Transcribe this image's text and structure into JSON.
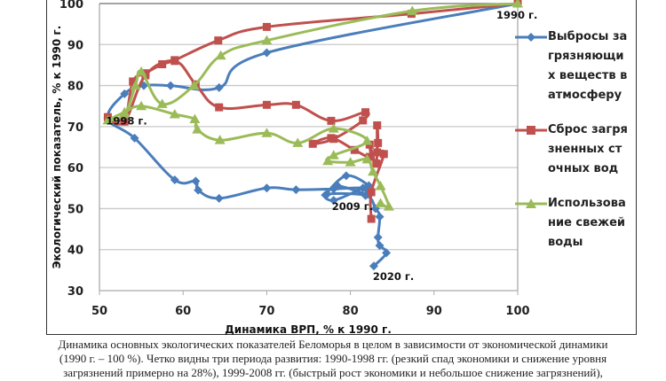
{
  "chart_data": {
    "type": "line",
    "title": "",
    "xlabel": "Динамика ВРП, % к 1990 г.",
    "ylabel": "Экологический показатель, % к 1990 г.",
    "xlim": [
      50,
      100
    ],
    "ylim": [
      30,
      100
    ],
    "xticks": [
      "50",
      "60",
      "70",
      "80",
      "90",
      "100"
    ],
    "yticks": [
      "30",
      "40",
      "50",
      "60",
      "70",
      "80",
      "90",
      "100"
    ],
    "grid": "horizontal",
    "legend_position": "right",
    "annotations": [
      {
        "text": "1990 г.",
        "x": 100,
        "y": 100
      },
      {
        "text": "1998 г.",
        "x": 51,
        "y": 72
      },
      {
        "text": "2009 г.",
        "x": 78,
        "y": 52
      },
      {
        "text": "2020 г.",
        "x": 83,
        "y": 36
      }
    ],
    "series": [
      {
        "name": "Выбросы загрязняющих веществ в атмосферу",
        "color": "#4a7ebb",
        "marker": "diamond",
        "x": [
          100,
          70,
          64.3,
          58.5,
          55.3,
          53,
          51,
          54.2,
          59,
          61.5,
          61.8,
          64.3,
          70,
          73.5,
          78,
          81.8,
          82,
          78.5,
          77,
          79.5,
          82.2,
          81.5,
          78,
          77.2,
          81.8,
          83,
          83.5,
          83.3,
          83.5,
          84.3,
          82.8
        ],
        "y": [
          100,
          88,
          79.5,
          80,
          80,
          78,
          72,
          67.2,
          57,
          56.7,
          54.5,
          52.5,
          55,
          54.6,
          54.8,
          55,
          53.5,
          55.5,
          53.3,
          58,
          55.6,
          55,
          52,
          53.5,
          53.2,
          50,
          48,
          43,
          41,
          39.2,
          36
        ]
      },
      {
        "name": "Сброс загрязненных сточных вод",
        "color": "#c0504d",
        "marker": "square",
        "x": [
          100,
          87.3,
          70,
          64.2,
          59,
          57.5,
          55.5,
          54,
          53,
          51,
          53,
          55.5,
          59,
          61.5,
          64.3,
          70,
          73.5,
          77.7,
          81.8,
          81.5,
          78,
          75.5,
          77.7,
          80.5,
          82.3,
          82.3,
          83.1,
          83.2,
          83.3,
          83.2,
          84,
          82.5,
          82.5
        ],
        "y": [
          100,
          97.5,
          94.3,
          91,
          86.2,
          85.2,
          83,
          81,
          72,
          72.3,
          71.2,
          82.5,
          86,
          80.3,
          74.7,
          75.3,
          75.3,
          71.4,
          73.5,
          71.5,
          67,
          65.8,
          67.2,
          64.3,
          62.6,
          65.6,
          61,
          70.3,
          66,
          63.7,
          63.3,
          54,
          47.5
        ]
      },
      {
        "name": "Использование свежей воды",
        "color": "#9bbb59",
        "marker": "triangle",
        "x": [
          100,
          87.4,
          70,
          64.5,
          61.3,
          57.5,
          55,
          54.3,
          53,
          51,
          53,
          55,
          59,
          61.4,
          61.7,
          64.4,
          70,
          73.7,
          78,
          82,
          78,
          77.3,
          80,
          82,
          82.7,
          83.6,
          84.6,
          83.6
        ],
        "y": [
          100,
          98.2,
          91,
          87.3,
          80,
          75.5,
          83.4,
          80,
          73,
          71.5,
          73.5,
          75,
          73,
          71.8,
          69.3,
          66.7,
          68.4,
          66,
          69.5,
          66.5,
          63,
          61.6,
          61.3,
          62,
          59,
          55.5,
          50.5,
          51.3
        ]
      }
    ]
  },
  "caption": {
    "line1": "Динамика основных экологических показателей Беломорья в целом в зависимости от экономической динамики",
    "line2": "(1990 г. – 100 %). Четко видны три периода развития: 1990-1998 гг. (резкий спад экономики и снижение уровня",
    "line3": "загрязнений примерно на 28%), 1999-2008 гг. (быстрый рост экономики и небольшое снижение загрязнений),"
  }
}
